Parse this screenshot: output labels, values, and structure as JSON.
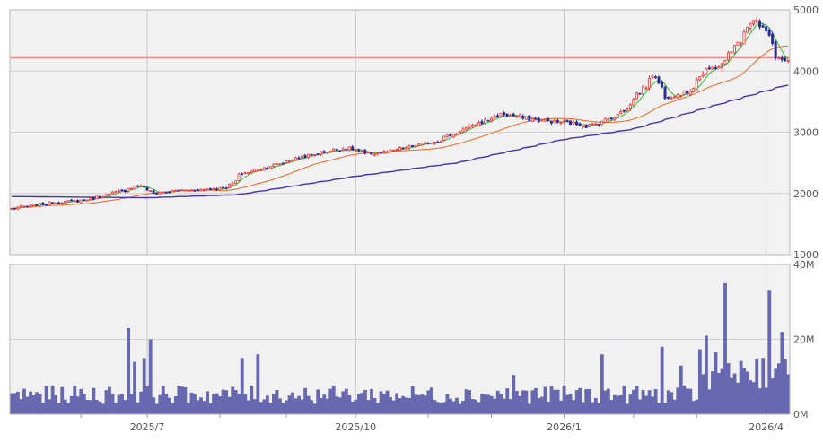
{
  "chart_data": [
    {
      "type": "candlestick",
      "panel": "price",
      "ylim": [
        1000,
        5000
      ],
      "y_ticks": [
        "1000",
        "2000",
        "3000",
        "4000",
        "5000"
      ],
      "x_tick_labels": [
        "2025/7",
        "2025/10",
        "2026/1",
        "2026/4"
      ],
      "x_range": [
        "2025-05-01",
        "2026-04-10"
      ],
      "grid": true,
      "reference_line": {
        "value": 4220,
        "color": "#ff6060"
      },
      "candle_colors": {
        "up": "#ee3333",
        "down": "#2b2b99"
      },
      "anchors": [
        [
          "2025-05-01",
          1750
        ],
        [
          "2025-05-10",
          1800
        ],
        [
          "2025-05-20",
          1850
        ],
        [
          "2025-06-01",
          1880
        ],
        [
          "2025-06-10",
          1950
        ],
        [
          "2025-06-20",
          2050
        ],
        [
          "2025-06-28",
          2150
        ],
        [
          "2025-07-03",
          2000
        ],
        [
          "2025-07-15",
          2050
        ],
        [
          "2025-07-25",
          2060
        ],
        [
          "2025-08-05",
          2100
        ],
        [
          "2025-08-12",
          2330
        ],
        [
          "2025-08-25",
          2450
        ],
        [
          "2025-09-05",
          2580
        ],
        [
          "2025-09-20",
          2700
        ],
        [
          "2025-09-28",
          2750
        ],
        [
          "2025-10-05",
          2640
        ],
        [
          "2025-10-15",
          2680
        ],
        [
          "2025-10-25",
          2760
        ],
        [
          "2025-11-05",
          2850
        ],
        [
          "2025-11-15",
          3000
        ],
        [
          "2025-11-25",
          3150
        ],
        [
          "2025-12-05",
          3300
        ],
        [
          "2025-12-15",
          3230
        ],
        [
          "2025-12-25",
          3180
        ],
        [
          "2026-01-05",
          3150
        ],
        [
          "2026-01-12",
          3100
        ],
        [
          "2026-01-20",
          3200
        ],
        [
          "2026-01-28",
          3350
        ],
        [
          "2026-02-05",
          3700
        ],
        [
          "2026-02-10",
          3950
        ],
        [
          "2026-02-15",
          3580
        ],
        [
          "2026-02-25",
          3650
        ],
        [
          "2026-03-05",
          4000
        ],
        [
          "2026-03-12",
          4100
        ],
        [
          "2026-03-20",
          4500
        ],
        [
          "2026-03-26",
          4850
        ],
        [
          "2026-04-01",
          4650
        ],
        [
          "2026-04-04",
          4350
        ],
        [
          "2026-04-07",
          4200
        ],
        [
          "2026-04-10",
          4150
        ]
      ],
      "moving_averages": [
        {
          "window": 5,
          "color": "#33bb33"
        },
        {
          "window": 25,
          "color": "#ee6622"
        },
        {
          "anchors": [
            [
              "2025-05-01",
              1950
            ],
            [
              "2025-07-01",
              1930
            ],
            [
              "2025-08-10",
              1980
            ],
            [
              "2025-10-01",
              2280
            ],
            [
              "2025-11-15",
              2500
            ],
            [
              "2026-01-01",
              2880
            ],
            [
              "2026-02-01",
              3050
            ],
            [
              "2026-03-01",
              3350
            ],
            [
              "2026-04-10",
              3770
            ]
          ],
          "color": "#4433aa"
        }
      ]
    },
    {
      "type": "bar",
      "panel": "volume",
      "ylim": [
        0,
        40000000
      ],
      "y_ticks": [
        "0M",
        "20M",
        "40M"
      ],
      "bar_color": "#6868b0",
      "grid": true,
      "baseline": 5500000,
      "spikes": [
        [
          "2025-06-23",
          23000000
        ],
        [
          "2025-06-25",
          14000000
        ],
        [
          "2025-06-30",
          15000000
        ],
        [
          "2025-07-02",
          20000000
        ],
        [
          "2025-08-12",
          15000000
        ],
        [
          "2025-08-19",
          16000000
        ],
        [
          "2025-12-10",
          10500000
        ],
        [
          "2026-01-19",
          16000000
        ],
        [
          "2026-02-13",
          18000000
        ],
        [
          "2026-02-23",
          13000000
        ],
        [
          "2026-03-05",
          21000000
        ],
        [
          "2026-03-13",
          35000000
        ],
        [
          "2026-04-02",
          33000000
        ],
        [
          "2026-04-08",
          22000000
        ]
      ],
      "elevated_period": [
        "2026-03-03",
        "2026-04-10",
        12000000
      ]
    }
  ]
}
